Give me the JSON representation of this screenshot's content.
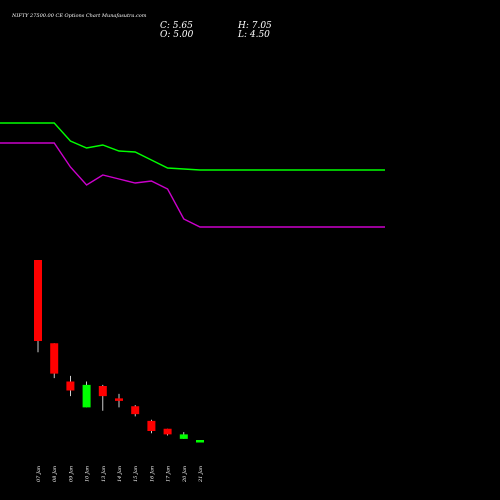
{
  "chart_data": {
    "type": "candlestick",
    "title": "NIFTY 27500.00 CE Options Chart Munafasutra.com",
    "ohlc_readout": {
      "close": "C: 5.65",
      "high": "H: 7.05",
      "open": "O: 5.00",
      "low": "L: 4.50"
    },
    "categories": [
      "07 Jan",
      "08 Jan",
      "09 Jan",
      "10 Jan",
      "13 Jan",
      "14 Jan",
      "15 Jan",
      "16 Jan",
      "17 Jan",
      "20 Jan",
      "21 Jan"
    ],
    "candles": [
      {
        "date": "07 Jan",
        "open": 160,
        "high": 160,
        "low": 78,
        "close": 88
      },
      {
        "date": "08 Jan",
        "open": 86,
        "high": 86,
        "low": 55,
        "close": 59
      },
      {
        "date": "09 Jan",
        "open": 52,
        "high": 57,
        "low": 39,
        "close": 44
      },
      {
        "date": "10 Jan",
        "open": 29,
        "high": 52,
        "low": 29,
        "close": 49
      },
      {
        "date": "13 Jan",
        "open": 48,
        "high": 49,
        "low": 26,
        "close": 39
      },
      {
        "date": "14 Jan",
        "open": 37,
        "high": 41,
        "low": 29,
        "close": 35
      },
      {
        "date": "15 Jan",
        "open": 30,
        "high": 31,
        "low": 21,
        "close": 23
      },
      {
        "date": "16 Jan",
        "open": 17,
        "high": 18,
        "low": 6,
        "close": 8
      },
      {
        "date": "17 Jan",
        "open": 10,
        "high": 10,
        "low": 4,
        "close": 5
      },
      {
        "date": "20 Jan",
        "open": 1,
        "high": 7,
        "low": 1,
        "close": 5
      },
      {
        "date": "21 Jan",
        "open": 0,
        "high": 0,
        "low": 0,
        "close": 0
      }
    ],
    "series": [
      {
        "values": [
          300,
          300,
          282,
          275,
          278,
          272,
          271,
          263,
          255,
          254,
          253
        ]
      },
      {
        "values": [
          280,
          280,
          256,
          238,
          248,
          244,
          240,
          242,
          234,
          204,
          196
        ]
      }
    ],
    "colors": {
      "background": "#000000",
      "text": "#ffffff",
      "up": "#00ff00",
      "down": "#ff0000",
      "wick": "#ffffff",
      "line_green": "#00ff00",
      "line_magenta": "#cc00cc"
    },
    "grid": false,
    "legend": "none"
  }
}
